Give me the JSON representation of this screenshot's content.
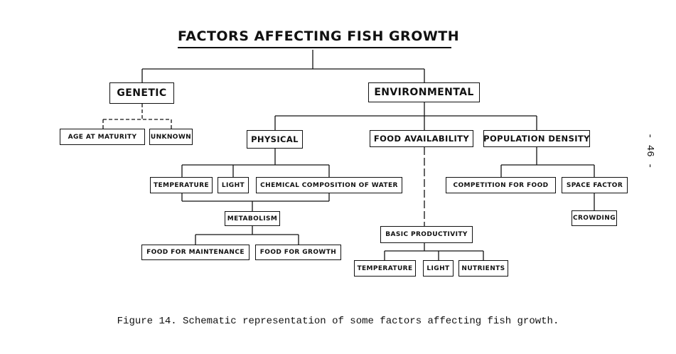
{
  "diagram": {
    "title": "FACTORS AFFECTING FISH GROWTH",
    "nodes": {
      "genetic": "GENETIC",
      "environmental": "ENVIRONMENTAL",
      "age_at_maturity": "AGE AT MATURITY",
      "unknown": "UNKNOWN",
      "physical": "PHYSICAL",
      "food_availability": "FOOD AVAILABILITY",
      "population_density": "POPULATION DENSITY",
      "temperature_physical": "TEMPERATURE",
      "light_physical": "LIGHT",
      "chemical_composition": "CHEMICAL COMPOSITION OF WATER",
      "metabolism": "METABOLISM",
      "food_for_maintenance": "FOOD FOR MAINTENANCE",
      "food_for_growth": "FOOD FOR GROWTH",
      "basic_productivity": "BASIC PRODUCTIVITY",
      "temperature_productivity": "TEMPERATURE",
      "light_productivity": "LIGHT",
      "nutrients": "NUTRIENTS",
      "competition_for_food": "COMPETITION FOR FOOD",
      "space_factor": "SPACE FACTOR",
      "crowding": "CROWDING"
    }
  },
  "caption": "Figure 14.  Schematic representation of some factors affecting fish growth.",
  "page_number": "- 46 -"
}
